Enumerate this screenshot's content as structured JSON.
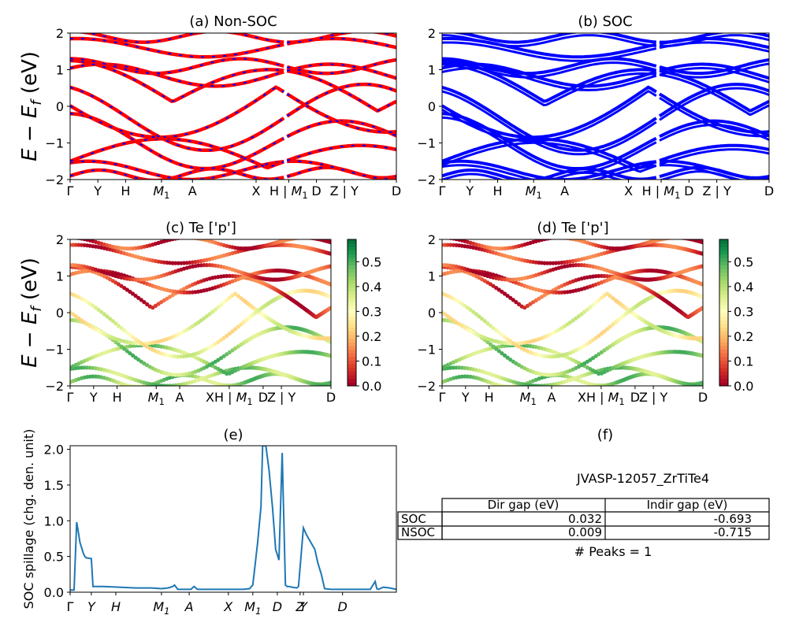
{
  "figure": {
    "ylabel": "E − E_f (eV)",
    "ylabel_main": "E − E",
    "ylabel_sub": "f",
    "ylabel_unit": " (eV)"
  },
  "band_ticks": {
    "wide": [
      "Γ",
      "Y",
      "H",
      "M1",
      "A",
      "X",
      "H | M1",
      "D",
      "Z | Y",
      "D"
    ],
    "narrow": [
      "Γ",
      "Y",
      "H",
      "M1",
      "A",
      "XH | M1",
      "D",
      "Z | Y",
      "D"
    ]
  },
  "panel_a": {
    "title": "(a) Non-SOC"
  },
  "panel_b": {
    "title": "(b) SOC"
  },
  "panel_c": {
    "title": "(c)  Te ['p']"
  },
  "panel_d": {
    "title": "(d) Te ['p']"
  },
  "panel_e": {
    "title": "(e)"
  },
  "panel_f": {
    "title": "(f)"
  },
  "colorbar": {
    "ticks": [
      "0.0",
      "0.1",
      "0.2",
      "0.3",
      "0.4",
      "0.5"
    ],
    "range": [
      0,
      0.59
    ],
    "colormap": "RdYlGn"
  },
  "colors": {
    "nonsoc_line": "#ff0000",
    "nonsoc_dash": "#0000ff",
    "soc_line": "#0000ff",
    "spillage_line": "#1f77b4"
  },
  "chart_data": [
    {
      "type": "line",
      "panel": "a",
      "title": "(a) Non-SOC",
      "ylabel": "E − E_f (eV)",
      "ylim": [
        -2,
        2
      ],
      "yticks": [
        -2,
        -1,
        0,
        1,
        2
      ],
      "xticklabels": [
        "Γ",
        "Y",
        "H",
        "M1",
        "A",
        "X",
        "H | M1",
        "D",
        "Z | Y",
        "D"
      ],
      "series_style": "red solid with blue dashes"
    },
    {
      "type": "line",
      "panel": "b",
      "title": "(b) SOC",
      "ylim": [
        -2,
        2
      ],
      "yticks": [
        -2,
        -1,
        0,
        1,
        2
      ],
      "xticklabels": [
        "Γ",
        "Y",
        "H",
        "M1",
        "A",
        "X",
        "H | M1",
        "D",
        "Z | Y",
        "D"
      ]
    },
    {
      "type": "scatter",
      "panel": "c",
      "title": "(c)  Te ['p']",
      "ylim": [
        -2,
        2
      ],
      "yticks": [
        -2,
        -1,
        0,
        1,
        2
      ],
      "colorbar_ticks": [
        0.0,
        0.1,
        0.2,
        0.3,
        0.4,
        0.5
      ],
      "xticklabels": [
        "Γ",
        "Y",
        "H",
        "M1",
        "A",
        "XH | M1",
        "D",
        "Z | Y",
        "D"
      ]
    },
    {
      "type": "scatter",
      "panel": "d",
      "title": "(d) Te ['p']",
      "ylim": [
        -2,
        2
      ],
      "yticks": [
        -2,
        -1,
        0,
        1,
        2
      ],
      "colorbar_ticks": [
        0.0,
        0.1,
        0.2,
        0.3,
        0.4,
        0.5
      ],
      "xticklabels": [
        "Γ",
        "Y",
        "H",
        "M1",
        "A",
        "XH | M1",
        "D",
        "Z | Y",
        "D"
      ]
    },
    {
      "type": "line",
      "panel": "e",
      "title": "(e)",
      "ylabel": "SOC spillage (chg. den. unit)",
      "ylim": [
        0,
        2.05
      ],
      "yticks": [
        "0.0",
        "0.5",
        "1.0",
        "1.5",
        "2.0"
      ],
      "xticklabels": [
        "Γ",
        "Y",
        "H",
        "M1",
        "A",
        "X",
        "M1",
        "D",
        "Z",
        "Y",
        "D"
      ],
      "x": [
        0,
        0.012,
        0.02,
        0.025,
        0.03,
        0.04,
        0.045,
        0.05,
        0.065,
        0.07,
        0.08,
        0.1,
        0.15,
        0.2,
        0.25,
        0.28,
        0.3,
        0.315,
        0.32,
        0.33,
        0.36,
        0.37,
        0.38,
        0.39,
        0.42,
        0.45,
        0.5,
        0.53,
        0.55,
        0.56,
        0.565,
        0.575,
        0.585,
        0.59,
        0.6,
        0.61,
        0.62,
        0.625,
        0.63,
        0.64,
        0.65,
        0.66,
        0.665,
        0.67,
        0.68,
        0.695,
        0.7,
        0.715,
        0.725,
        0.75,
        0.76,
        0.77,
        0.78,
        0.8,
        0.8,
        0.86,
        0.92,
        0.935,
        0.94,
        0.945,
        0.96,
        0.98,
        1.0
      ],
      "y": [
        0.03,
        0.03,
        0.98,
        0.85,
        0.7,
        0.55,
        0.5,
        0.48,
        0.47,
        0.08,
        0.08,
        0.08,
        0.07,
        0.06,
        0.06,
        0.05,
        0.06,
        0.08,
        0.1,
        0.04,
        0.04,
        0.04,
        0.08,
        0.04,
        0.04,
        0.04,
        0.04,
        0.04,
        0.05,
        0.1,
        0.3,
        0.7,
        1.2,
        2.05,
        2.05,
        1.7,
        1.2,
        0.9,
        0.6,
        0.45,
        1.95,
        0.1,
        0.08,
        0.08,
        0.07,
        0.06,
        0.08,
        0.9,
        0.8,
        0.6,
        0.4,
        0.25,
        0.05,
        0.04,
        0.04,
        0.04,
        0.04,
        0.15,
        0.05,
        0.04,
        0.07,
        0.06,
        0.04
      ]
    },
    {
      "type": "table",
      "panel": "f",
      "title": "(f)",
      "caption": "JVASP-12057_ZrTiTe4",
      "columns": [
        "",
        "Dir gap (eV)",
        "Indir gap (eV)"
      ],
      "rows": [
        [
          "SOC",
          "0.032",
          "-0.693"
        ],
        [
          "NSOC",
          "0.009",
          "-0.715"
        ]
      ],
      "footer": "# Peaks = 1"
    }
  ]
}
